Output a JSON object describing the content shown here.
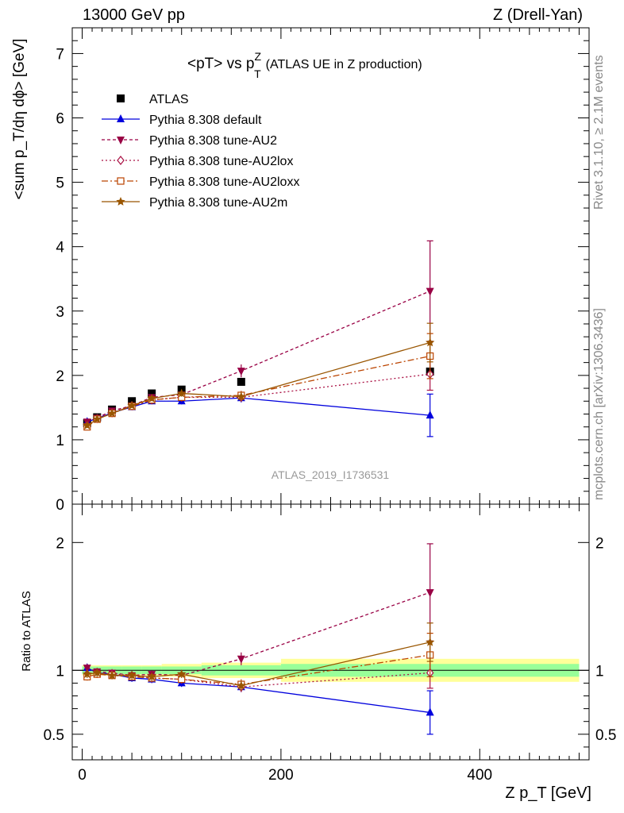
{
  "header": {
    "left": "13000 GeV pp",
    "right": "Z (Drell-Yan)"
  },
  "side_labels": {
    "rivet": "Rivet 3.1.10, ≥ 2.1M events",
    "mcplots": "mcplots.cern.ch [arXiv:1306.3436]"
  },
  "chart_data": [
    {
      "type": "scatter",
      "title_main": "<pT> vs p",
      "title_sup": "Z",
      "title_sub": "T",
      "title_rest": "(ATLAS UE in Z production)",
      "ylabel": "<sum p_T/dη dϕ> [GeV]",
      "xlabel": "Z p_T [GeV]",
      "watermark": "ATLAS_2019_I1736531",
      "xlim": [
        -10,
        510
      ],
      "ylim": [
        0,
        7.4
      ],
      "yticks": [
        0,
        1,
        2,
        3,
        4,
        5,
        6,
        7
      ],
      "legend_position": "top-left",
      "x": [
        5,
        15,
        30,
        50,
        70,
        100,
        160,
        350
      ],
      "series": [
        {
          "name": "ATLAS",
          "color": "#000000",
          "marker": "square",
          "dash": "none",
          "values": [
            1.26,
            1.35,
            1.47,
            1.6,
            1.72,
            1.78,
            1.9,
            2.06
          ],
          "errors": [
            0.03,
            0.03,
            0.03,
            0.03,
            0.03,
            0.04,
            0.05,
            0.09
          ]
        },
        {
          "name": "Pythia 8.308 default",
          "color": "#0000dd",
          "marker": "triangle-up",
          "dash": "none",
          "values": [
            1.28,
            1.33,
            1.42,
            1.51,
            1.6,
            1.6,
            1.65,
            1.38
          ],
          "errors": [
            0.03,
            0.03,
            0.03,
            0.03,
            0.04,
            0.05,
            0.07,
            0.33
          ]
        },
        {
          "name": "Pythia 8.308 tune-AU2",
          "color": "#990044",
          "marker": "triangle-down",
          "dash": "4,3",
          "values": [
            1.28,
            1.34,
            1.45,
            1.53,
            1.66,
            1.7,
            2.07,
            3.31
          ],
          "errors": [
            0.03,
            0.03,
            0.03,
            0.03,
            0.04,
            0.05,
            0.1,
            0.78
          ]
        },
        {
          "name": "Pythia 8.308 tune-AU2lox",
          "color": "#aa1144",
          "marker": "diamond-open",
          "dash": "2,3",
          "values": [
            1.22,
            1.33,
            1.42,
            1.53,
            1.62,
            1.66,
            1.66,
            2.02
          ],
          "errors": [
            0.03,
            0.03,
            0.03,
            0.03,
            0.04,
            0.05,
            0.07,
            0.25
          ]
        },
        {
          "name": "Pythia 8.308 tune-AU2loxx",
          "color": "#bb4400",
          "marker": "square-open",
          "dash": "8,3,2,3",
          "values": [
            1.2,
            1.32,
            1.41,
            1.52,
            1.62,
            1.66,
            1.69,
            2.3
          ],
          "errors": [
            0.03,
            0.03,
            0.03,
            0.03,
            0.04,
            0.05,
            0.07,
            0.35
          ]
        },
        {
          "name": "Pythia 8.308 tune-AU2m",
          "color": "#995500",
          "marker": "star",
          "dash": "none",
          "values": [
            1.22,
            1.32,
            1.41,
            1.53,
            1.64,
            1.72,
            1.67,
            2.51
          ],
          "errors": [
            0.03,
            0.03,
            0.03,
            0.03,
            0.04,
            0.05,
            0.07,
            0.3
          ]
        }
      ]
    },
    {
      "type": "scatter",
      "ylabel": "Ratio to ATLAS",
      "xlabel": "Z p_T [GeV]",
      "xlim": [
        -10,
        510
      ],
      "ylim": [
        0.3,
        2.3
      ],
      "yticks": [
        0.5,
        1,
        2
      ],
      "xticks": [
        0,
        200,
        400
      ],
      "x": [
        5,
        15,
        30,
        50,
        70,
        100,
        160,
        350
      ],
      "bands": {
        "colors": {
          "outer": "#ffff99",
          "inner": "#99ff99"
        },
        "edges": [
          0,
          10,
          20,
          40,
          60,
          80,
          120,
          200,
          500
        ],
        "outer_halfwidth": [
          0.04,
          0.04,
          0.04,
          0.04,
          0.04,
          0.05,
          0.06,
          0.09
        ],
        "inner_halfwidth": [
          0.03,
          0.03,
          0.03,
          0.03,
          0.03,
          0.03,
          0.04,
          0.05
        ]
      },
      "series": [
        {
          "name": "Pythia 8.308 default",
          "values": [
            1.02,
            0.98,
            0.97,
            0.94,
            0.93,
            0.9,
            0.87,
            0.67
          ],
          "errors": [
            0.03,
            0.03,
            0.03,
            0.03,
            0.03,
            0.03,
            0.04,
            0.17
          ]
        },
        {
          "name": "Pythia 8.308 tune-AU2",
          "values": [
            1.02,
            0.99,
            0.98,
            0.96,
            0.97,
            0.96,
            1.09,
            1.61
          ],
          "errors": [
            0.03,
            0.03,
            0.03,
            0.03,
            0.03,
            0.03,
            0.05,
            0.38
          ]
        },
        {
          "name": "Pythia 8.308 tune-AU2lox",
          "values": [
            0.97,
            0.98,
            0.97,
            0.96,
            0.94,
            0.93,
            0.87,
            0.98
          ],
          "errors": [
            0.03,
            0.03,
            0.03,
            0.03,
            0.03,
            0.03,
            0.04,
            0.12
          ]
        },
        {
          "name": "Pythia 8.308 tune-AU2loxx",
          "values": [
            0.95,
            0.97,
            0.96,
            0.95,
            0.94,
            0.93,
            0.89,
            1.12
          ],
          "errors": [
            0.03,
            0.03,
            0.03,
            0.03,
            0.03,
            0.03,
            0.04,
            0.17
          ]
        },
        {
          "name": "Pythia 8.308 tune-AU2m",
          "values": [
            0.97,
            0.98,
            0.96,
            0.96,
            0.95,
            0.97,
            0.88,
            1.22
          ],
          "errors": [
            0.03,
            0.03,
            0.03,
            0.03,
            0.03,
            0.03,
            0.04,
            0.15
          ]
        }
      ]
    }
  ]
}
